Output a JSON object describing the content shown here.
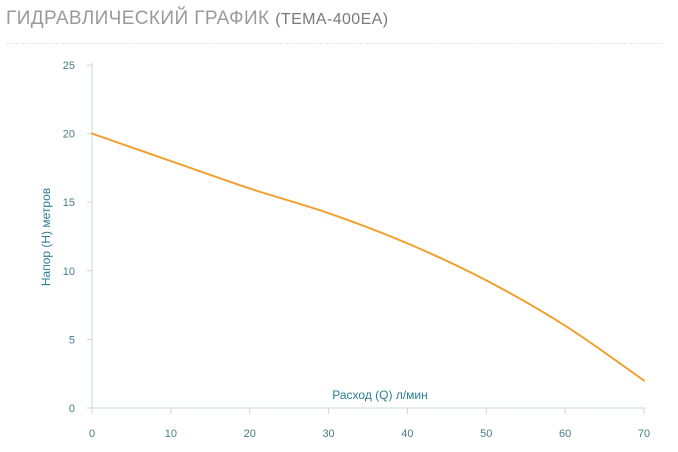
{
  "header": {
    "title": "ГИДРАВЛИЧЕСКИЙ ГРАФИК",
    "subtitle": "(TEMA-400EA)"
  },
  "chart_data": {
    "type": "line",
    "title": "ГИДРАВЛИЧЕСКИЙ ГРАФИК (TEMA-400EA)",
    "xlabel": "Расход (Q) л/мин",
    "ylabel": "Напор (H) метров",
    "xlim": [
      0,
      70
    ],
    "ylim": [
      0,
      25
    ],
    "x_ticks": [
      0,
      10,
      20,
      30,
      40,
      50,
      60,
      70
    ],
    "y_ticks": [
      0,
      5,
      10,
      15,
      20,
      25
    ],
    "grid": false,
    "series": [
      {
        "color": "#f0a030",
        "x": [
          0,
          10,
          20,
          30,
          40,
          50,
          60,
          70
        ],
        "y": [
          20,
          18,
          16,
          14.2,
          12,
          9.3,
          6,
          2
        ]
      }
    ]
  }
}
